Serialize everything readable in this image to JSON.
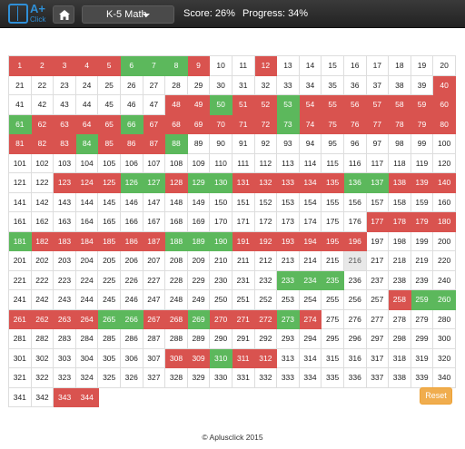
{
  "navbar": {
    "logo_text": "A+",
    "logo_sub": "Click",
    "subject": "K-5 Math",
    "score": "Score: 26%",
    "progress": "Progress: 34%"
  },
  "grid": {
    "total": 344,
    "columns": 20,
    "red": [
      1,
      2,
      3,
      4,
      5,
      9,
      12,
      40,
      48,
      49,
      51,
      52,
      54,
      55,
      56,
      57,
      58,
      59,
      60,
      62,
      63,
      64,
      65,
      67,
      68,
      69,
      70,
      71,
      72,
      74,
      75,
      76,
      77,
      78,
      79,
      80,
      81,
      82,
      83,
      85,
      86,
      87,
      123,
      124,
      125,
      128,
      131,
      132,
      133,
      134,
      135,
      138,
      139,
      140,
      177,
      178,
      179,
      180,
      182,
      183,
      184,
      185,
      186,
      187,
      191,
      192,
      193,
      194,
      195,
      196,
      258,
      261,
      262,
      263,
      264,
      267,
      268,
      270,
      271,
      272,
      274,
      308,
      309,
      311,
      312,
      343,
      344
    ],
    "green": [
      6,
      7,
      8,
      50,
      53,
      61,
      66,
      73,
      84,
      88,
      126,
      127,
      129,
      130,
      136,
      137,
      181,
      188,
      189,
      190,
      233,
      234,
      235,
      259,
      260,
      265,
      266,
      269,
      273,
      310
    ],
    "gray": [
      216
    ]
  },
  "reset_label": "Reset",
  "footer": "© Aplusclick 2015"
}
